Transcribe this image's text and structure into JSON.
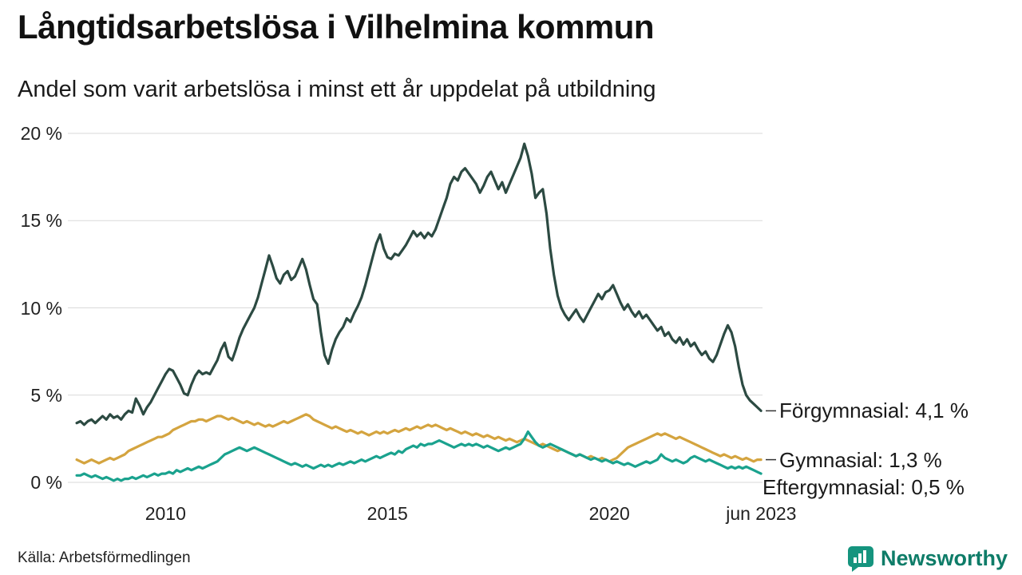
{
  "header": {
    "title": "Långtidsarbetslösa i Vilhelmina kommun",
    "subtitle": "Andel som varit arbetslösa i minst ett år uppdelat på utbildning"
  },
  "footer": {
    "source": "Källa: Arbetsförmedlingen",
    "brand_name": "Newsworthy",
    "brand_icon_color": "#15947e",
    "brand_text_color": "#0e7c68"
  },
  "chart_data": {
    "type": "line",
    "title": "Långtidsarbetslösa i Vilhelmina kommun",
    "subtitle": "Andel som varit arbetslösa i minst ett år uppdelat på utbildning",
    "grid": true,
    "legend_position": "right-end-labels",
    "x_unit": "year-month",
    "x_start": 2008.0,
    "x_step": 0.0833333,
    "xlim": [
      2007.8,
      2023.45
    ],
    "ylim": [
      0,
      20
    ],
    "yticks": [
      {
        "value": 0,
        "label": "0 %"
      },
      {
        "value": 5,
        "label": "5 %"
      },
      {
        "value": 10,
        "label": "10 %"
      },
      {
        "value": 15,
        "label": "15 %"
      },
      {
        "value": 20,
        "label": "20 %"
      }
    ],
    "xticks": [
      {
        "value": 2010,
        "label": "2010"
      },
      {
        "value": 2015,
        "label": "2015"
      },
      {
        "value": 2020,
        "label": "2020"
      },
      {
        "value": 2023.42,
        "label": "jun 2023"
      }
    ],
    "series": [
      {
        "name": "Förgymnasial",
        "color": "#2c4a42",
        "end_label": "Förgymnasial: 4,1 %",
        "last_value": 4.1,
        "values": [
          3.4,
          3.5,
          3.3,
          3.5,
          3.6,
          3.4,
          3.6,
          3.8,
          3.6,
          3.9,
          3.7,
          3.8,
          3.6,
          3.9,
          4.1,
          4.0,
          4.8,
          4.4,
          3.9,
          4.3,
          4.6,
          5.0,
          5.4,
          5.8,
          6.2,
          6.5,
          6.4,
          6.0,
          5.6,
          5.1,
          5.0,
          5.6,
          6.1,
          6.4,
          6.2,
          6.3,
          6.2,
          6.6,
          7.0,
          7.6,
          8.0,
          7.2,
          7.0,
          7.6,
          8.3,
          8.8,
          9.2,
          9.6,
          10.0,
          10.6,
          11.4,
          12.2,
          13.0,
          12.4,
          11.7,
          11.4,
          11.9,
          12.1,
          11.6,
          11.8,
          12.3,
          12.8,
          12.2,
          11.3,
          10.5,
          10.2,
          8.6,
          7.3,
          6.8,
          7.6,
          8.2,
          8.6,
          8.9,
          9.4,
          9.2,
          9.7,
          10.1,
          10.6,
          11.3,
          12.1,
          12.9,
          13.7,
          14.2,
          13.4,
          12.9,
          12.8,
          13.1,
          13.0,
          13.3,
          13.6,
          14.0,
          14.4,
          14.1,
          14.3,
          14.0,
          14.3,
          14.1,
          14.5,
          15.1,
          15.7,
          16.3,
          17.1,
          17.5,
          17.3,
          17.8,
          18.0,
          17.7,
          17.4,
          17.1,
          16.6,
          17.0,
          17.5,
          17.8,
          17.3,
          16.8,
          17.2,
          16.6,
          17.1,
          17.6,
          18.1,
          18.6,
          19.4,
          18.7,
          17.7,
          16.3,
          16.6,
          16.8,
          15.4,
          13.4,
          11.9,
          10.7,
          10.0,
          9.6,
          9.3,
          9.6,
          9.9,
          9.5,
          9.2,
          9.6,
          10.0,
          10.4,
          10.8,
          10.5,
          10.9,
          11.0,
          11.3,
          10.8,
          10.3,
          9.9,
          10.2,
          9.8,
          9.5,
          9.8,
          9.4,
          9.6,
          9.3,
          9.0,
          8.7,
          8.9,
          8.4,
          8.6,
          8.2,
          8.0,
          8.3,
          7.9,
          8.2,
          7.8,
          8.0,
          7.6,
          7.3,
          7.5,
          7.1,
          6.9,
          7.3,
          7.9,
          8.5,
          9.0,
          8.6,
          7.8,
          6.6,
          5.6,
          5.0,
          4.7,
          4.5,
          4.3,
          4.1
        ]
      },
      {
        "name": "Gymnasial",
        "color": "#d4a43f",
        "end_label": "Gymnasial: 1,3 %",
        "last_value": 1.3,
        "values": [
          1.3,
          1.2,
          1.1,
          1.2,
          1.3,
          1.2,
          1.1,
          1.2,
          1.3,
          1.4,
          1.3,
          1.4,
          1.5,
          1.6,
          1.8,
          1.9,
          2.0,
          2.1,
          2.2,
          2.3,
          2.4,
          2.5,
          2.6,
          2.6,
          2.7,
          2.8,
          3.0,
          3.1,
          3.2,
          3.3,
          3.4,
          3.5,
          3.5,
          3.6,
          3.6,
          3.5,
          3.6,
          3.7,
          3.8,
          3.8,
          3.7,
          3.6,
          3.7,
          3.6,
          3.5,
          3.4,
          3.5,
          3.4,
          3.3,
          3.4,
          3.3,
          3.2,
          3.3,
          3.2,
          3.3,
          3.4,
          3.5,
          3.4,
          3.5,
          3.6,
          3.7,
          3.8,
          3.9,
          3.8,
          3.6,
          3.5,
          3.4,
          3.3,
          3.2,
          3.1,
          3.2,
          3.1,
          3.0,
          2.9,
          3.0,
          2.9,
          2.8,
          2.9,
          2.8,
          2.7,
          2.8,
          2.9,
          2.8,
          2.9,
          2.8,
          2.9,
          3.0,
          2.9,
          3.0,
          3.1,
          3.0,
          3.1,
          3.2,
          3.1,
          3.2,
          3.3,
          3.2,
          3.3,
          3.2,
          3.1,
          3.0,
          3.1,
          3.0,
          2.9,
          2.8,
          2.9,
          2.8,
          2.7,
          2.8,
          2.7,
          2.6,
          2.7,
          2.6,
          2.5,
          2.6,
          2.5,
          2.4,
          2.5,
          2.4,
          2.3,
          2.4,
          2.5,
          2.4,
          2.3,
          2.2,
          2.1,
          2.2,
          2.1,
          2.0,
          1.9,
          1.8,
          1.9,
          1.8,
          1.7,
          1.6,
          1.5,
          1.6,
          1.5,
          1.4,
          1.5,
          1.4,
          1.3,
          1.4,
          1.3,
          1.2,
          1.3,
          1.4,
          1.6,
          1.8,
          2.0,
          2.1,
          2.2,
          2.3,
          2.4,
          2.5,
          2.6,
          2.7,
          2.8,
          2.7,
          2.8,
          2.7,
          2.6,
          2.5,
          2.6,
          2.5,
          2.4,
          2.3,
          2.2,
          2.1,
          2.0,
          1.9,
          1.8,
          1.7,
          1.6,
          1.5,
          1.6,
          1.5,
          1.4,
          1.5,
          1.4,
          1.3,
          1.4,
          1.3,
          1.2,
          1.3,
          1.3
        ]
      },
      {
        "name": "Eftergymnasial",
        "color": "#1aa28e",
        "end_label": "Eftergymnasial: 0,5 %",
        "last_value": 0.5,
        "values": [
          0.4,
          0.4,
          0.5,
          0.4,
          0.3,
          0.4,
          0.3,
          0.2,
          0.3,
          0.2,
          0.1,
          0.2,
          0.1,
          0.2,
          0.2,
          0.3,
          0.2,
          0.3,
          0.4,
          0.3,
          0.4,
          0.5,
          0.4,
          0.5,
          0.5,
          0.6,
          0.5,
          0.7,
          0.6,
          0.7,
          0.8,
          0.7,
          0.8,
          0.9,
          0.8,
          0.9,
          1.0,
          1.1,
          1.2,
          1.4,
          1.6,
          1.7,
          1.8,
          1.9,
          2.0,
          1.9,
          1.8,
          1.9,
          2.0,
          1.9,
          1.8,
          1.7,
          1.6,
          1.5,
          1.4,
          1.3,
          1.2,
          1.1,
          1.0,
          1.1,
          1.0,
          0.9,
          1.0,
          0.9,
          0.8,
          0.9,
          1.0,
          0.9,
          1.0,
          0.9,
          1.0,
          1.1,
          1.0,
          1.1,
          1.2,
          1.1,
          1.2,
          1.3,
          1.2,
          1.3,
          1.4,
          1.5,
          1.4,
          1.5,
          1.6,
          1.7,
          1.6,
          1.8,
          1.7,
          1.9,
          2.0,
          2.1,
          2.0,
          2.2,
          2.1,
          2.2,
          2.2,
          2.3,
          2.4,
          2.3,
          2.2,
          2.1,
          2.0,
          2.1,
          2.2,
          2.1,
          2.2,
          2.1,
          2.2,
          2.1,
          2.0,
          2.1,
          2.0,
          1.9,
          1.8,
          1.9,
          2.0,
          1.9,
          2.0,
          2.1,
          2.2,
          2.5,
          2.9,
          2.6,
          2.3,
          2.1,
          2.0,
          2.1,
          2.2,
          2.1,
          2.0,
          1.9,
          1.8,
          1.7,
          1.6,
          1.5,
          1.6,
          1.5,
          1.4,
          1.3,
          1.4,
          1.3,
          1.2,
          1.3,
          1.2,
          1.1,
          1.2,
          1.1,
          1.0,
          1.1,
          1.0,
          0.9,
          1.0,
          1.1,
          1.2,
          1.1,
          1.2,
          1.3,
          1.6,
          1.4,
          1.3,
          1.2,
          1.3,
          1.2,
          1.1,
          1.2,
          1.4,
          1.5,
          1.4,
          1.3,
          1.2,
          1.3,
          1.2,
          1.1,
          1.0,
          0.9,
          0.8,
          0.9,
          0.8,
          0.9,
          0.8,
          0.9,
          0.8,
          0.7,
          0.6,
          0.5
        ]
      }
    ],
    "source": "Källa: Arbetsförmedlingen"
  }
}
